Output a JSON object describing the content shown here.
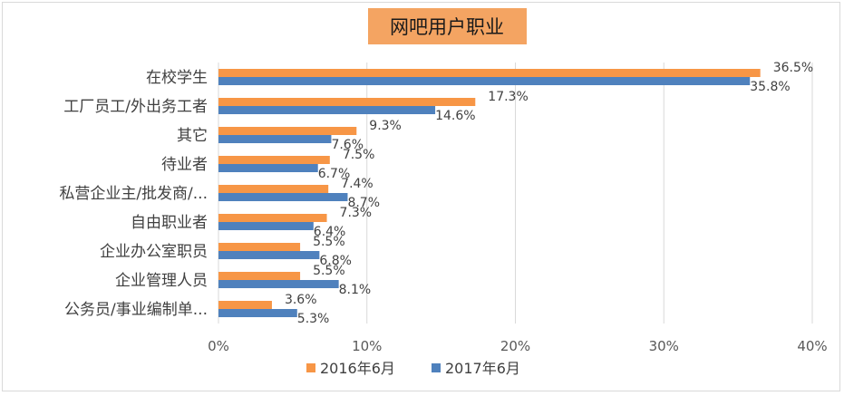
{
  "chart_data": {
    "type": "bar",
    "orientation": "horizontal",
    "title": "网吧用户职业",
    "categories": [
      "在校学生",
      "工厂员工/外出务工者",
      "其它",
      "待业者",
      "私营企业主/批发商/...",
      "自由职业者",
      "企业办公室职员",
      "企业管理人员",
      "公务员/事业编制单..."
    ],
    "series": [
      {
        "name": "2016年6月",
        "color": "#f79646",
        "values": [
          36.5,
          17.3,
          9.3,
          7.5,
          7.4,
          7.3,
          5.5,
          5.5,
          3.6
        ],
        "labels": [
          "36.5%",
          "17.3%",
          "9.3%",
          "7.5%",
          "7.4%",
          "7.3%",
          "5.5%",
          "5.5%",
          "3.6%"
        ]
      },
      {
        "name": "2017年6月",
        "color": "#4f81bd",
        "values": [
          35.8,
          14.6,
          7.6,
          6.7,
          8.7,
          6.4,
          6.8,
          8.1,
          5.3
        ],
        "labels": [
          "35.8%",
          "14.6%",
          "7.6%",
          "6.7%",
          "8.7%",
          "6.4%",
          "6.8%",
          "8.1%",
          "5.3%"
        ]
      }
    ],
    "xlim": [
      0,
      40
    ],
    "xticks": [
      0,
      10,
      20,
      30,
      40
    ],
    "xtick_labels": [
      "0%",
      "10%",
      "20%",
      "30%",
      "40%"
    ],
    "grid": true,
    "legend": "bottom"
  }
}
